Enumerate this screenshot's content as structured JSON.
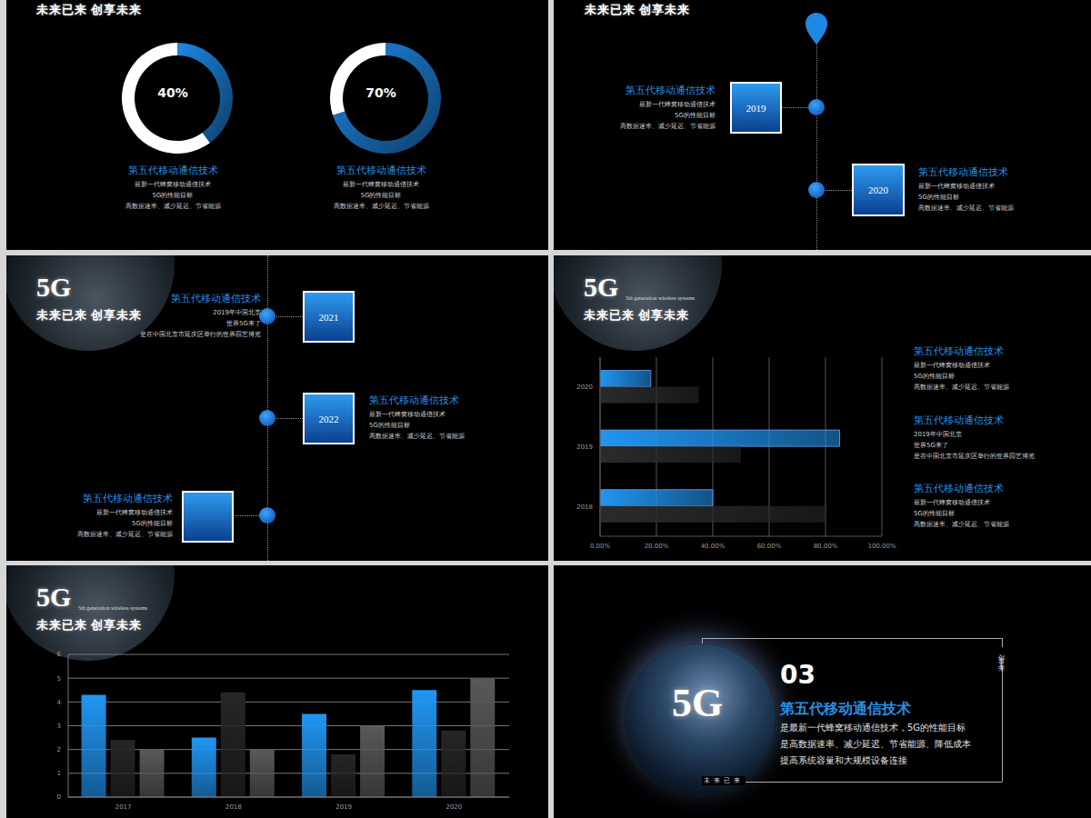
{
  "header": {
    "tagline": "未来已来 创享未来",
    "logo": "5G",
    "logo_subtitle": "5th generation wireless systems"
  },
  "chart_data": [
    {
      "type": "donut",
      "title": "第五代移动通信技术",
      "annotations": [
        "最新一代蜂窝移动通信技术",
        "5G的性能目标",
        "高数据速率、减少延迟、节省能源"
      ],
      "values": [
        40
      ],
      "value_labels": [
        "40%"
      ],
      "ylim": [
        0,
        100
      ],
      "color": "#1e88e5"
    },
    {
      "type": "donut",
      "title": "第五代移动通信技术",
      "annotations": [
        "最新一代蜂窝移动通信技术",
        "5G的性能目标",
        "高数据速率、减少延迟、节省能源"
      ],
      "values": [
        70
      ],
      "value_labels": [
        "70%"
      ],
      "ylim": [
        0,
        100
      ],
      "color": "#1e88e5"
    },
    {
      "type": "bar",
      "orientation": "horizontal",
      "categories": [
        "2018",
        "2019",
        "2020"
      ],
      "series": [
        {
          "color": "#2196f3",
          "values": [
            40,
            85,
            18
          ]
        },
        {
          "color": "#2b2b2b",
          "values": [
            80,
            50,
            35
          ]
        }
      ],
      "xlim": [
        0,
        100
      ],
      "xticks": [
        {
          "value": 0,
          "label": "0.00%"
        },
        {
          "value": 20,
          "label": "20.00%"
        },
        {
          "value": 40,
          "label": "40.00%"
        },
        {
          "value": 60,
          "label": "60.00%"
        },
        {
          "value": 80,
          "label": "80.00%"
        },
        {
          "value": 100,
          "label": "100.00%"
        }
      ],
      "grid": true
    },
    {
      "type": "bar",
      "categories": [
        "2017",
        "2018",
        "2019",
        "2020"
      ],
      "series": [
        {
          "color": "#2196f3",
          "values": [
            4.3,
            2.5,
            3.5,
            4.5
          ]
        },
        {
          "color": "#262626",
          "values": [
            2.4,
            4.4,
            1.8,
            2.8
          ]
        },
        {
          "color": "#595959",
          "values": [
            2.0,
            2.0,
            3.0,
            5.0
          ]
        }
      ],
      "ylim": [
        0,
        6
      ],
      "yticks": [
        0,
        1,
        2,
        3,
        4,
        5,
        6
      ],
      "grid": true
    }
  ],
  "timeline_top": [
    {
      "year": "2019",
      "title": "第五代移动通信技术",
      "lines": [
        "最新一代蜂窝移动通信技术",
        "5G的性能目标",
        "高数据速率、减少延迟、节省能源"
      ]
    },
    {
      "year": "2020",
      "title": "第五代移动通信技术",
      "lines": [
        "最新一代蜂窝移动通信技术",
        "5G的性能目标",
        "高数据速率、减少延迟、节省能源"
      ]
    }
  ],
  "timeline_middle": [
    {
      "year": "2021"
    },
    {
      "year": "2022",
      "title": "第五代移动通信技术",
      "lines": [
        "最新一代蜂窝移动通信技术",
        "5G的性能目标",
        "高数据速率、减少延迟、节省能源"
      ]
    },
    {
      "title": "第五代移动通信技术",
      "lines": [
        "最新一代蜂窝移动通信技术",
        "5G的性能目标",
        "高数据速率、减少延迟、节省能源"
      ]
    }
  ],
  "overlay_note": {
    "title": "第五代移动通信技术",
    "lines": [
      "2019年中国北京",
      "世界5G来了",
      "是在中国北京市延庆区举行的世界园艺博览"
    ]
  },
  "bar_notes": [
    {
      "title": "第五代移动通信技术",
      "lines": [
        "最新一代蜂窝移动通信技术",
        "5G的性能目标",
        "高数据速率、减少延迟、节省能源"
      ]
    },
    {
      "title": "第五代移动通信技术",
      "lines": [
        "2019年中国北京",
        "世界5G来了",
        "是在中国北京市延庆区举行的世界园艺博览"
      ]
    },
    {
      "title": "第五代移动通信技术",
      "lines": [
        "最新一代蜂窝移动通信技术",
        "5G的性能目标",
        "高数据速率、减少延迟、节省能源"
      ]
    }
  ],
  "section": {
    "number": "03",
    "logo": "5G",
    "title": "第五代移动通信技术",
    "lines": [
      "是最新一代蜂窝移动通信技术，5G的性能目标",
      "是高数据速率、减少延迟、节省能源、降低成本",
      "提高系统容量和大规模设备连接"
    ],
    "corner_top": "创享未来",
    "corner_bottom": "未来已来"
  }
}
